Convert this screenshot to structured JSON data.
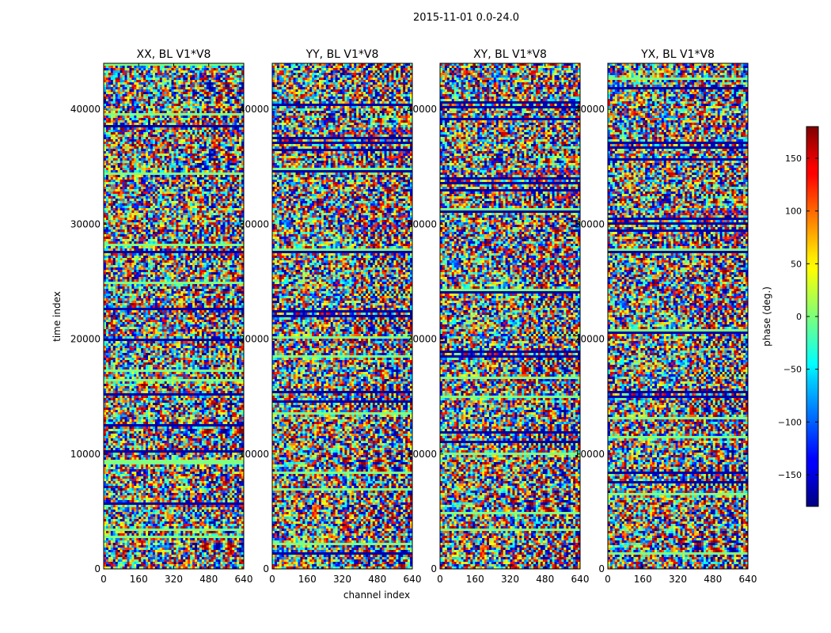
{
  "chart_data": {
    "type": "heatmap",
    "suptitle": "2015-11-01 0.0-24.0",
    "xlabel": "channel index",
    "ylabel": "time index",
    "x_range": [
      0,
      640
    ],
    "y_range": [
      0,
      44000
    ],
    "x_ticks": [
      0,
      160,
      320,
      480,
      640
    ],
    "y_ticks": [
      0,
      10000,
      20000,
      30000,
      40000
    ],
    "panels": [
      {
        "title": "XX, BL V1*V8"
      },
      {
        "title": "YY, BL V1*V8"
      },
      {
        "title": "XY, BL V1*V8"
      },
      {
        "title": "YX, BL V1*V8"
      }
    ],
    "colorbar": {
      "label": "phase (deg.)",
      "range": [
        -180,
        180
      ],
      "ticks": [
        -150,
        -100,
        -50,
        0,
        50,
        100,
        150
      ],
      "tick_labels": [
        "−150",
        "−100",
        "−50",
        "0",
        "50",
        "100",
        "150"
      ],
      "colormap": "jet"
    }
  },
  "colors": {
    "axis": "#000000",
    "background": "#ffffff"
  }
}
